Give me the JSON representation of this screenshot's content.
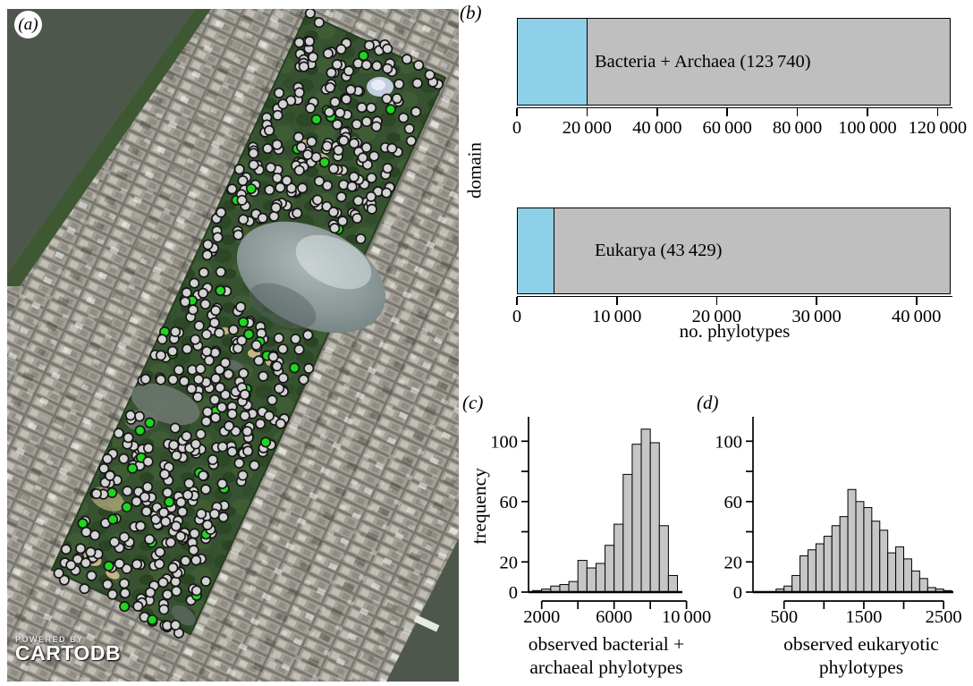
{
  "panel_labels": {
    "a": "(a)",
    "b": "(b)",
    "c": "(c)",
    "d": "(d)"
  },
  "map": {
    "attribution": {
      "line1": "POWERED BY",
      "line2": "CARTODB"
    },
    "samples": {
      "total_dots": 570,
      "green_dots": 46,
      "gray_color": "#d3d3d3",
      "green_color": "#1fd61f",
      "outline_color": "#161616",
      "radius": 5.2,
      "seed": 20147
    }
  },
  "chart_data": [
    {
      "id": "bacteria_archaea_bar",
      "type": "bar",
      "orientation": "horizontal",
      "bar_label": "Bacteria + Archaea (123 740)",
      "total": 123740,
      "segments": [
        {
          "name": "blue_segment",
          "value": 20000,
          "color": "#8dd0e8"
        },
        {
          "name": "gray_segment",
          "value": 103740,
          "color": "#bfbfbf"
        }
      ],
      "xlim": [
        0,
        123740
      ],
      "xticks": [
        0,
        20000,
        40000,
        60000,
        80000,
        100000,
        120000
      ],
      "xtick_labels": [
        "0",
        "20 000",
        "40 000",
        "60 000",
        "80 000",
        "100 000",
        "120 000"
      ],
      "ylabel": "domain"
    },
    {
      "id": "eukarya_bar",
      "type": "bar",
      "orientation": "horizontal",
      "bar_label": "Eukarya (43 429)",
      "total": 43429,
      "segments": [
        {
          "name": "blue_segment",
          "value": 3700,
          "color": "#8dd0e8"
        },
        {
          "name": "gray_segment",
          "value": 39729,
          "color": "#bfbfbf"
        }
      ],
      "xlim": [
        0,
        43429
      ],
      "xticks": [
        0,
        10000,
        20000,
        30000,
        40000
      ],
      "xtick_labels": [
        "0",
        "10 000",
        "20 000",
        "30 000",
        "40 000"
      ],
      "xlabel": "no. phylotypes"
    },
    {
      "id": "hist_bacteria_archaea",
      "type": "bar",
      "subtype": "histogram",
      "bin_start": 1500,
      "bin_width": 500,
      "values": [
        1,
        2,
        4,
        5,
        7,
        21,
        16,
        19,
        31,
        45,
        78,
        98,
        108,
        99,
        44,
        11
      ],
      "xticks": [
        2000,
        4000,
        6000,
        8000,
        10000
      ],
      "xtick_labels": [
        "2000",
        "",
        "6000",
        "",
        "10 000"
      ],
      "yticks": [
        0,
        20,
        40,
        60,
        80,
        100
      ],
      "ytick_labels": [
        "0",
        "20",
        "",
        "60",
        "",
        "100"
      ],
      "ylim": [
        0,
        115
      ],
      "ylabel": "frequency",
      "xlabel_lines": [
        "observed bacterial +",
        "archaeal phylotypes"
      ],
      "bar_color": "#c6c6c6"
    },
    {
      "id": "hist_eukaryote",
      "type": "bar",
      "subtype": "histogram",
      "bin_start": 400,
      "bin_width": 100,
      "values": [
        2,
        4,
        11,
        24,
        28,
        32,
        37,
        44,
        50,
        68,
        60,
        56,
        47,
        41,
        26,
        30,
        22,
        14,
        9,
        3,
        2,
        1
      ],
      "xticks": [
        500,
        1000,
        1500,
        2000,
        2500
      ],
      "xtick_labels": [
        "500",
        "",
        "1500",
        "",
        "2500"
      ],
      "yticks": [
        0,
        20,
        40,
        60,
        80,
        100
      ],
      "ytick_labels": [
        "0",
        "20",
        "",
        "60",
        "",
        "100"
      ],
      "ylim": [
        0,
        115
      ],
      "xlabel_lines": [
        "observed eukaryotic",
        "phylotypes"
      ],
      "bar_color": "#c6c6c6"
    }
  ]
}
